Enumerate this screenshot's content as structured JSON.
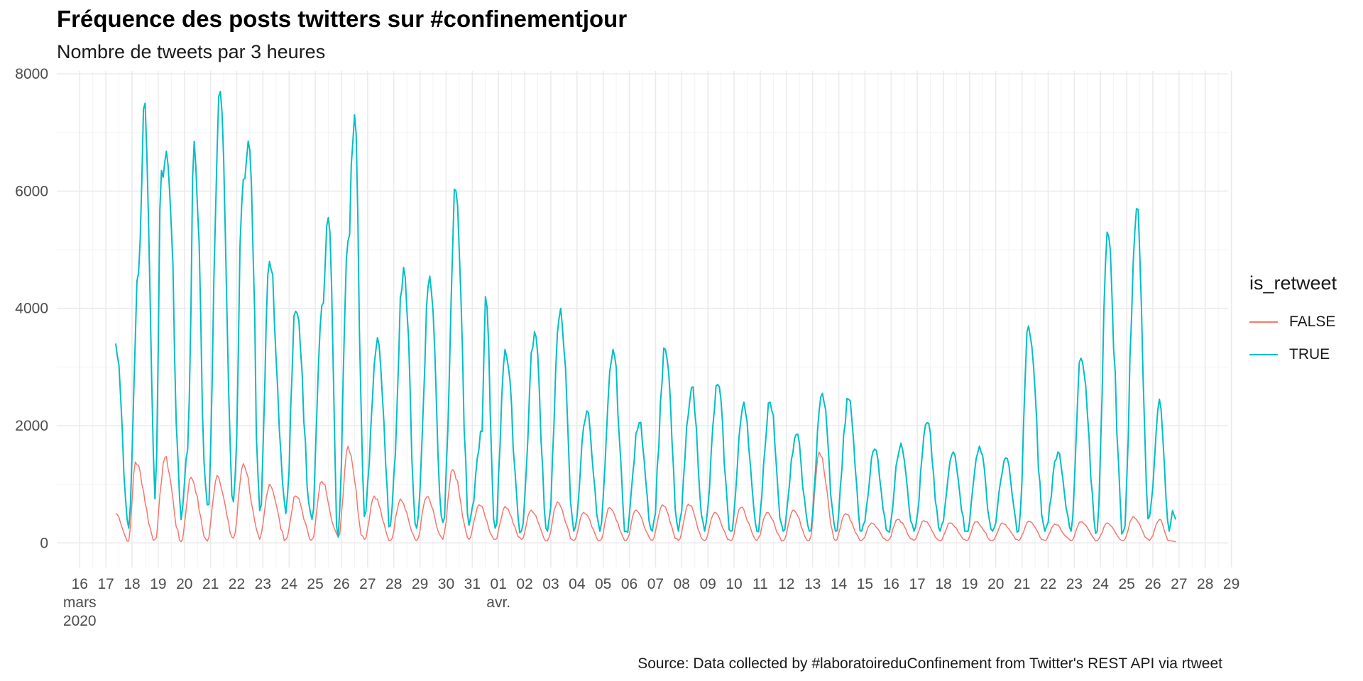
{
  "title": "Fréquence des posts twitters sur #confinementjour",
  "subtitle": "Nombre de tweets par 3 heures",
  "caption": "Source: Data collected by #laboratoireduConfinement from Twitter's REST API via rtweet",
  "legend": {
    "title": "is_retweet",
    "items": [
      {
        "label": "FALSE",
        "color": "#F8766D"
      },
      {
        "label": "TRUE",
        "color": "#00BFC4"
      }
    ]
  },
  "chart_data": {
    "type": "line",
    "title": "Fréquence des posts twitters sur #confinementjour",
    "subtitle": "Nombre de tweets par 3 heures",
    "xlabel": "",
    "ylabel": "",
    "ylim": [
      -420,
      8050
    ],
    "xlim": [
      "2020-03-15T15:00",
      "2020-04-29T09:00"
    ],
    "yticks": [
      0,
      2000,
      4000,
      6000,
      8000
    ],
    "xtick_labels": [
      "16\nmars\n2020",
      "17",
      "18",
      "19",
      "20",
      "21",
      "22",
      "23",
      "24",
      "25",
      "26",
      "27",
      "28",
      "29",
      "30",
      "31",
      "01\navr.",
      "02",
      "03",
      "04",
      "05",
      "06",
      "07",
      "08",
      "09",
      "10",
      "11",
      "12",
      "13",
      "14",
      "15",
      "16",
      "17",
      "18",
      "19",
      "20",
      "21",
      "22",
      "23",
      "24",
      "25",
      "26",
      "27",
      "28",
      "29"
    ],
    "grid": true,
    "legend_position": "right",
    "series": [
      {
        "name": "FALSE",
        "color": "#F8766D",
        "daily_peaks": [
          [
            "2020-03-17T21:00",
            500
          ],
          [
            "2020-03-18T09:00",
            30
          ],
          [
            "2020-03-18T15:00",
            1380
          ],
          [
            "2020-03-19T09:00",
            60
          ],
          [
            "2020-03-19T18:00",
            1450
          ],
          [
            "2020-03-20T09:00",
            20
          ],
          [
            "2020-03-20T18:00",
            1120
          ],
          [
            "2020-03-21T09:00",
            30
          ],
          [
            "2020-03-21T18:00",
            1150
          ],
          [
            "2020-03-22T09:00",
            80
          ],
          [
            "2020-03-22T18:00",
            1350
          ],
          [
            "2020-03-23T09:00",
            60
          ],
          [
            "2020-03-23T18:00",
            1000
          ],
          [
            "2020-03-24T09:00",
            60
          ],
          [
            "2020-03-24T18:00",
            800
          ],
          [
            "2020-03-25T09:00",
            60
          ],
          [
            "2020-03-25T18:00",
            1050
          ],
          [
            "2020-03-26T09:00",
            100
          ],
          [
            "2020-03-26T18:00",
            1650
          ],
          [
            "2020-03-27T09:00",
            60
          ],
          [
            "2020-03-27T18:00",
            800
          ],
          [
            "2020-03-28T09:00",
            40
          ],
          [
            "2020-03-28T18:00",
            750
          ],
          [
            "2020-03-29T09:00",
            40
          ],
          [
            "2020-03-29T18:00",
            780
          ],
          [
            "2020-03-30T09:00",
            60
          ],
          [
            "2020-03-30T18:00",
            1250
          ],
          [
            "2020-03-31T09:00",
            60
          ],
          [
            "2020-03-31T18:00",
            650
          ],
          [
            "2020-04-01T09:00",
            60
          ],
          [
            "2020-04-01T18:00",
            620
          ],
          [
            "2020-04-02T09:00",
            60
          ],
          [
            "2020-04-02T18:00",
            560
          ],
          [
            "2020-04-03T09:00",
            40
          ],
          [
            "2020-04-03T18:00",
            700
          ],
          [
            "2020-04-04T09:00",
            40
          ],
          [
            "2020-04-04T18:00",
            520
          ],
          [
            "2020-04-05T09:00",
            40
          ],
          [
            "2020-04-05T18:00",
            600
          ],
          [
            "2020-04-06T09:00",
            40
          ],
          [
            "2020-04-06T18:00",
            560
          ],
          [
            "2020-04-07T09:00",
            40
          ],
          [
            "2020-04-07T18:00",
            650
          ],
          [
            "2020-04-08T09:00",
            40
          ],
          [
            "2020-04-08T18:00",
            660
          ],
          [
            "2020-04-09T09:00",
            40
          ],
          [
            "2020-04-09T18:00",
            520
          ],
          [
            "2020-04-10T09:00",
            40
          ],
          [
            "2020-04-10T18:00",
            600
          ],
          [
            "2020-04-11T09:00",
            40
          ],
          [
            "2020-04-11T18:00",
            520
          ],
          [
            "2020-04-12T09:00",
            40
          ],
          [
            "2020-04-12T18:00",
            560
          ],
          [
            "2020-04-13T09:00",
            40
          ],
          [
            "2020-04-13T18:00",
            1550
          ],
          [
            "2020-04-14T09:00",
            40
          ],
          [
            "2020-04-14T18:00",
            500
          ],
          [
            "2020-04-15T09:00",
            40
          ],
          [
            "2020-04-15T18:00",
            340
          ],
          [
            "2020-04-16T09:00",
            40
          ],
          [
            "2020-04-16T18:00",
            400
          ],
          [
            "2020-04-17T09:00",
            40
          ],
          [
            "2020-04-17T18:00",
            380
          ],
          [
            "2020-04-18T09:00",
            40
          ],
          [
            "2020-04-18T18:00",
            340
          ],
          [
            "2020-04-19T09:00",
            40
          ],
          [
            "2020-04-19T18:00",
            360
          ],
          [
            "2020-04-20T09:00",
            40
          ],
          [
            "2020-04-20T18:00",
            340
          ],
          [
            "2020-04-21T09:00",
            40
          ],
          [
            "2020-04-21T18:00",
            370
          ],
          [
            "2020-04-22T09:00",
            40
          ],
          [
            "2020-04-22T18:00",
            320
          ],
          [
            "2020-04-23T09:00",
            40
          ],
          [
            "2020-04-23T18:00",
            360
          ],
          [
            "2020-04-24T09:00",
            40
          ],
          [
            "2020-04-24T18:00",
            340
          ],
          [
            "2020-04-25T09:00",
            40
          ],
          [
            "2020-04-25T18:00",
            450
          ],
          [
            "2020-04-26T09:00",
            40
          ],
          [
            "2020-04-26T18:00",
            400
          ],
          [
            "2020-04-27T03:00",
            40
          ],
          [
            "2020-04-27T09:00",
            20
          ]
        ]
      },
      {
        "name": "TRUE",
        "color": "#00BFC4",
        "daily_peaks": [
          [
            "2020-03-17T21:00",
            3400
          ],
          [
            "2020-03-18T09:00",
            250
          ],
          [
            "2020-03-18T18:00",
            4600
          ],
          [
            "2020-03-19T00:00",
            7500
          ],
          [
            "2020-03-19T09:00",
            750
          ],
          [
            "2020-03-19T15:00",
            6350
          ],
          [
            "2020-03-19T21:00",
            6450
          ],
          [
            "2020-03-20T09:00",
            400
          ],
          [
            "2020-03-20T15:00",
            1600
          ],
          [
            "2020-03-20T21:00",
            6850
          ],
          [
            "2020-03-21T09:00",
            650
          ],
          [
            "2020-03-21T21:00",
            7700
          ],
          [
            "2020-03-22T09:00",
            700
          ],
          [
            "2020-03-22T18:00",
            6200
          ],
          [
            "2020-03-23T00:00",
            6700
          ],
          [
            "2020-03-23T09:00",
            550
          ],
          [
            "2020-03-23T18:00",
            4800
          ],
          [
            "2020-03-24T09:00",
            500
          ],
          [
            "2020-03-24T18:00",
            3950
          ],
          [
            "2020-03-25T09:00",
            400
          ],
          [
            "2020-03-25T18:00",
            4050
          ],
          [
            "2020-03-26T00:00",
            5550
          ],
          [
            "2020-03-26T09:00",
            100
          ],
          [
            "2020-03-26T18:00",
            5150
          ],
          [
            "2020-03-27T00:00",
            7300
          ],
          [
            "2020-03-27T09:00",
            450
          ],
          [
            "2020-03-27T21:00",
            3500
          ],
          [
            "2020-03-28T09:00",
            300
          ],
          [
            "2020-03-28T21:00",
            4700
          ],
          [
            "2020-03-29T09:00",
            250
          ],
          [
            "2020-03-29T21:00",
            4550
          ],
          [
            "2020-03-30T09:00",
            350
          ],
          [
            "2020-03-30T21:00",
            6000
          ],
          [
            "2020-03-31T09:00",
            300
          ],
          [
            "2020-03-31T21:00",
            1900
          ],
          [
            "2020-04-01T00:00",
            4200
          ],
          [
            "2020-04-01T09:00",
            250
          ],
          [
            "2020-04-01T18:00",
            3300
          ],
          [
            "2020-04-02T09:00",
            200
          ],
          [
            "2020-04-02T21:00",
            3600
          ],
          [
            "2020-04-03T09:00",
            200
          ],
          [
            "2020-04-03T21:00",
            4000
          ],
          [
            "2020-04-04T09:00",
            200
          ],
          [
            "2020-04-04T21:00",
            2250
          ],
          [
            "2020-04-05T09:00",
            200
          ],
          [
            "2020-04-05T21:00",
            3300
          ],
          [
            "2020-04-06T09:00",
            200
          ],
          [
            "2020-04-06T21:00",
            2050
          ],
          [
            "2020-04-07T09:00",
            200
          ],
          [
            "2020-04-07T21:00",
            3300
          ],
          [
            "2020-04-08T09:00",
            200
          ],
          [
            "2020-04-08T21:00",
            2650
          ],
          [
            "2020-04-09T09:00",
            200
          ],
          [
            "2020-04-09T21:00",
            2700
          ],
          [
            "2020-04-10T09:00",
            200
          ],
          [
            "2020-04-10T21:00",
            2400
          ],
          [
            "2020-04-11T09:00",
            200
          ],
          [
            "2020-04-11T21:00",
            2400
          ],
          [
            "2020-04-12T09:00",
            200
          ],
          [
            "2020-04-12T21:00",
            1850
          ],
          [
            "2020-04-13T09:00",
            200
          ],
          [
            "2020-04-13T21:00",
            2550
          ],
          [
            "2020-04-14T09:00",
            200
          ],
          [
            "2020-04-14T21:00",
            2450
          ],
          [
            "2020-04-15T09:00",
            200
          ],
          [
            "2020-04-15T21:00",
            1600
          ],
          [
            "2020-04-16T09:00",
            200
          ],
          [
            "2020-04-16T21:00",
            1700
          ],
          [
            "2020-04-17T09:00",
            200
          ],
          [
            "2020-04-17T21:00",
            2050
          ],
          [
            "2020-04-18T09:00",
            200
          ],
          [
            "2020-04-18T21:00",
            1550
          ],
          [
            "2020-04-19T09:00",
            200
          ],
          [
            "2020-04-19T21:00",
            1650
          ],
          [
            "2020-04-20T09:00",
            200
          ],
          [
            "2020-04-20T21:00",
            1450
          ],
          [
            "2020-04-21T09:00",
            200
          ],
          [
            "2020-04-21T18:00",
            3700
          ],
          [
            "2020-04-22T09:00",
            200
          ],
          [
            "2020-04-22T21:00",
            1550
          ],
          [
            "2020-04-23T09:00",
            200
          ],
          [
            "2020-04-23T18:00",
            3150
          ],
          [
            "2020-04-24T09:00",
            200
          ],
          [
            "2020-04-24T18:00",
            5300
          ],
          [
            "2020-04-25T09:00",
            200
          ],
          [
            "2020-04-25T21:00",
            5700
          ],
          [
            "2020-04-26T09:00",
            450
          ],
          [
            "2020-04-26T18:00",
            2450
          ],
          [
            "2020-04-27T03:00",
            200
          ],
          [
            "2020-04-27T06:00",
            550
          ],
          [
            "2020-04-27T09:00",
            400
          ]
        ]
      }
    ]
  }
}
